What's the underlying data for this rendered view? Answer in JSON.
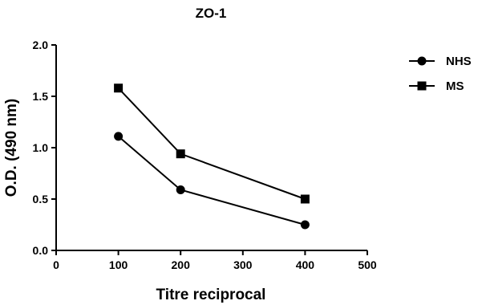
{
  "chart_data": {
    "type": "line",
    "title": "ZO-1",
    "xlabel": "Titre reciprocal",
    "ylabel": "O.D. (490 nm)",
    "xlim": [
      0,
      500
    ],
    "ylim": [
      0,
      2.0
    ],
    "x_ticks": [
      "0",
      "100",
      "200",
      "300",
      "400",
      "500"
    ],
    "y_ticks": [
      "0.0",
      "0.5",
      "1.0",
      "1.5",
      "2.0"
    ],
    "grid": false,
    "legend_position": "top-right",
    "series": [
      {
        "name": "NHS",
        "marker": "circle",
        "x": [
          100,
          200,
          400
        ],
        "y": [
          1.11,
          0.59,
          0.25
        ]
      },
      {
        "name": "MS",
        "marker": "square",
        "x": [
          100,
          200,
          400
        ],
        "y": [
          1.58,
          0.94,
          0.5
        ]
      }
    ]
  }
}
